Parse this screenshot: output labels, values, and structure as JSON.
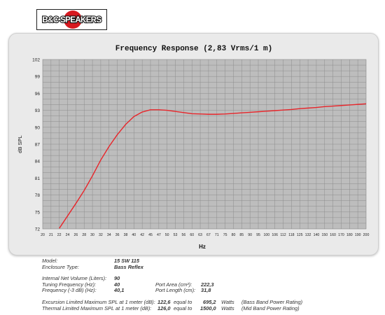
{
  "logo_text": "B&C SPEAKERS",
  "chart_data": {
    "type": "line",
    "title": "Frequency Response (2,83 Vrms/1 m)",
    "xlabel": "Hz",
    "ylabel": "dB SPL",
    "xlim": [
      20,
      200
    ],
    "ylim": [
      72,
      102
    ],
    "x_ticks": [
      "20",
      "21",
      "22",
      "24",
      "26",
      "28",
      "30",
      "32",
      "34",
      "36",
      "38",
      "40",
      "42",
      "45",
      "47",
      "50",
      "53",
      "56",
      "60",
      "63",
      "67",
      "71",
      "75",
      "80",
      "85",
      "90",
      "95",
      "100",
      "106",
      "112",
      "118",
      "125",
      "132",
      "140",
      "150",
      "160",
      "170",
      "180",
      "190",
      "200"
    ],
    "y_ticks": [
      "72",
      "75",
      "78",
      "81",
      "84",
      "87",
      "90",
      "93",
      "96",
      "99",
      "102"
    ],
    "grid": true,
    "series_color": "#e8252a",
    "series": [
      {
        "x": [
          22,
          24,
          26,
          28,
          30,
          32,
          34,
          36,
          38,
          40,
          42,
          45,
          47,
          50,
          53,
          56,
          60,
          63,
          67,
          71,
          75,
          80,
          85,
          90,
          95,
          100,
          106,
          112,
          118,
          125,
          132,
          140,
          150,
          160,
          170,
          180,
          190,
          200
        ],
        "y": [
          72.1,
          74.3,
          76.5,
          78.8,
          81.4,
          84.2,
          86.6,
          88.7,
          90.5,
          91.9,
          92.7,
          93.1,
          93.1,
          93.0,
          92.8,
          92.6,
          92.4,
          92.35,
          92.3,
          92.3,
          92.35,
          92.45,
          92.55,
          92.65,
          92.75,
          92.85,
          92.95,
          93.05,
          93.15,
          93.3,
          93.4,
          93.5,
          93.65,
          93.75,
          93.85,
          93.95,
          94.05,
          94.15
        ]
      }
    ]
  },
  "specs": {
    "model_label": "Model:",
    "model_value": "15 SW 115",
    "enclosure_label": "Enclosure Type:",
    "enclosure_value": "Bass Reflex",
    "volume_label": "Internal  Net Volume (Liters):",
    "volume_value": "90",
    "tuning_label": "Tuning Frequency (Hz):",
    "tuning_value": "40",
    "f3_label": "Frequency (-3 dB) (Hz):",
    "f3_value": "40,1",
    "port_area_label": "Port Area (cm²):",
    "port_area_value": "222,3",
    "port_length_label": "Port Length (cm):",
    "port_length_value": "31,8",
    "excursion_label": "Excursion Limited Maximum SPL at 1 meter (dB):",
    "excursion_value": "122,6",
    "excursion_equal": "equal to",
    "excursion_watts": "695,2",
    "excursion_unit": "Watts",
    "excursion_note": "(Bass Band Power Rating)",
    "thermal_label": "Thermal Limited Maximum SPL at 1 meter (dB):",
    "thermal_value": "126,0",
    "thermal_equal": "equal to",
    "thermal_watts": "1500,0",
    "thermal_unit": "Watts",
    "thermal_note": "(Mid Band Power Rating)"
  }
}
